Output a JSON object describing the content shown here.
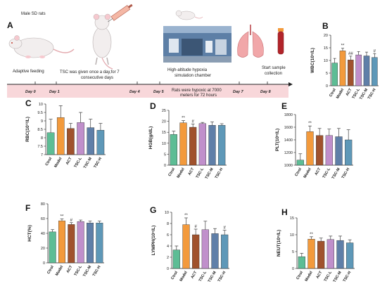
{
  "schematic": {
    "letter": "A",
    "animal_label": "Male SD rats",
    "feeding_label": "Adaptive feeding",
    "treatment_label_1": "TSC was given once a day,for 7",
    "treatment_label_2": "consecutive days",
    "chamber_label_1": "High-altitude hypoxia",
    "chamber_label_2": "simulation chamber",
    "sample_label_1": "Start sample",
    "sample_label_2": "collection",
    "hypoxia_label_1": "Rats were hypoxic at 7000",
    "hypoxia_label_2": "meters for 72 hours",
    "days": [
      "Day 0",
      "Day 1",
      "Day 4",
      "Day 5",
      "Day 7",
      "Day 8"
    ],
    "colors": {
      "timeline_band": "#f8d7da",
      "chamber": "#5d7fa6"
    }
  },
  "chart_data": [
    {
      "letter": "B",
      "type": "bar",
      "categories": [
        "Ctrol",
        "Model",
        "ACT",
        "TSC-L",
        "TSC-M",
        "TSC-H"
      ],
      "values": [
        9.0,
        13.8,
        10.2,
        12.2,
        11.8,
        11.2
      ],
      "errors": [
        1.8,
        1.0,
        1.5,
        1.3,
        1.5,
        1.5
      ],
      "significance": [
        "",
        "**",
        "##",
        "",
        "",
        "#"
      ],
      "ylabel": "WBC(10⁹/L)",
      "ylim": [
        0,
        20
      ],
      "yticks": [
        0,
        5,
        10,
        15,
        20
      ]
    },
    {
      "letter": "C",
      "type": "bar",
      "categories": [
        "Ctrol",
        "Model",
        "ACT",
        "TSC-L",
        "TSC-M",
        "TSC-H"
      ],
      "values": [
        8.3,
        9.2,
        8.55,
        8.9,
        8.6,
        8.45
      ],
      "errors": [
        0.8,
        0.7,
        0.3,
        0.6,
        0.5,
        0.4
      ],
      "significance": [
        "",
        "",
        "",
        "",
        "",
        ""
      ],
      "ylabel": "RBC(10¹²/L)",
      "ylim": [
        7.0,
        10.0
      ],
      "yticks": [
        7.0,
        7.5,
        8.0,
        8.5,
        9.0,
        9.5,
        10.0
      ]
    },
    {
      "letter": "D",
      "type": "bar",
      "categories": [
        "Ctrol",
        "Model",
        "ACT",
        "TSC-L",
        "TSC-M",
        "TSC-H"
      ],
      "values": [
        14.0,
        19.3,
        17.3,
        19.0,
        18.2,
        18.2
      ],
      "errors": [
        1.5,
        1.0,
        1.5,
        0.5,
        1.5,
        0.7
      ],
      "significance": [
        "",
        "**",
        "#",
        "",
        "",
        ""
      ],
      "ylabel": "HGB(g/dL)",
      "ylim": [
        0,
        25
      ],
      "yticks": [
        0,
        5,
        10,
        15,
        20,
        25
      ]
    },
    {
      "letter": "E",
      "type": "bar",
      "categories": [
        "Ctrol",
        "Model",
        "ACT",
        "TSC-L",
        "TSC-M",
        "TSC-H"
      ],
      "values": [
        1080,
        1530,
        1470,
        1470,
        1450,
        1400
      ],
      "errors": [
        100,
        90,
        110,
        100,
        130,
        160
      ],
      "significance": [
        "",
        "**",
        "",
        "",
        "",
        ""
      ],
      "ylabel": "PLT(10⁹/L)",
      "ylim": [
        1000,
        1800
      ],
      "yticks": [
        1000,
        1200,
        1400,
        1600,
        1800
      ]
    },
    {
      "letter": "F",
      "type": "bar",
      "categories": [
        "Ctrol",
        "Model",
        "ACT",
        "TSC-L",
        "TSC-M",
        "TSC-H"
      ],
      "values": [
        42,
        57,
        52,
        56,
        54,
        54
      ],
      "errors": [
        3,
        2.5,
        2.5,
        2,
        2.5,
        2.5
      ],
      "significance": [
        "",
        "**",
        "#",
        "",
        "",
        ""
      ],
      "ylabel": "HCT(%)",
      "ylim": [
        0,
        80
      ],
      "yticks": [
        0,
        20,
        40,
        60,
        80
      ]
    },
    {
      "letter": "G",
      "type": "bar",
      "categories": [
        "Ctrol",
        "Model",
        "ACT",
        "TSC-L",
        "TSC-M",
        "TSC-H"
      ],
      "values": [
        3.3,
        7.8,
        6.0,
        6.9,
        6.2,
        6.0
      ],
      "errors": [
        0.7,
        1.2,
        1.0,
        1.5,
        0.9,
        0.8
      ],
      "significance": [
        "",
        "**",
        "#",
        "",
        "",
        "#"
      ],
      "ylabel": "LYMPH(10⁹/L)",
      "ylim": [
        0,
        10
      ],
      "yticks": [
        0,
        2,
        4,
        6,
        8,
        10
      ]
    },
    {
      "letter": "H",
      "type": "bar",
      "categories": [
        "Ctrol",
        "Model",
        "ACT",
        "TSC-L",
        "TSC-M",
        "TSC-H"
      ],
      "values": [
        3.5,
        8.7,
        8.1,
        8.6,
        8.3,
        7.6
      ],
      "errors": [
        1.0,
        0.7,
        0.9,
        1.0,
        1.3,
        0.9
      ],
      "significance": [
        "",
        "**",
        "",
        "",
        "",
        ""
      ],
      "ylabel": "NEUT(10⁹/L)",
      "ylim": [
        0,
        15
      ],
      "yticks": [
        0,
        5,
        10,
        15
      ]
    }
  ],
  "bar_colors": [
    "#5dbd95",
    "#f39a3c",
    "#a0522d",
    "#c08fcb",
    "#5f7fa8",
    "#5e98b8"
  ]
}
